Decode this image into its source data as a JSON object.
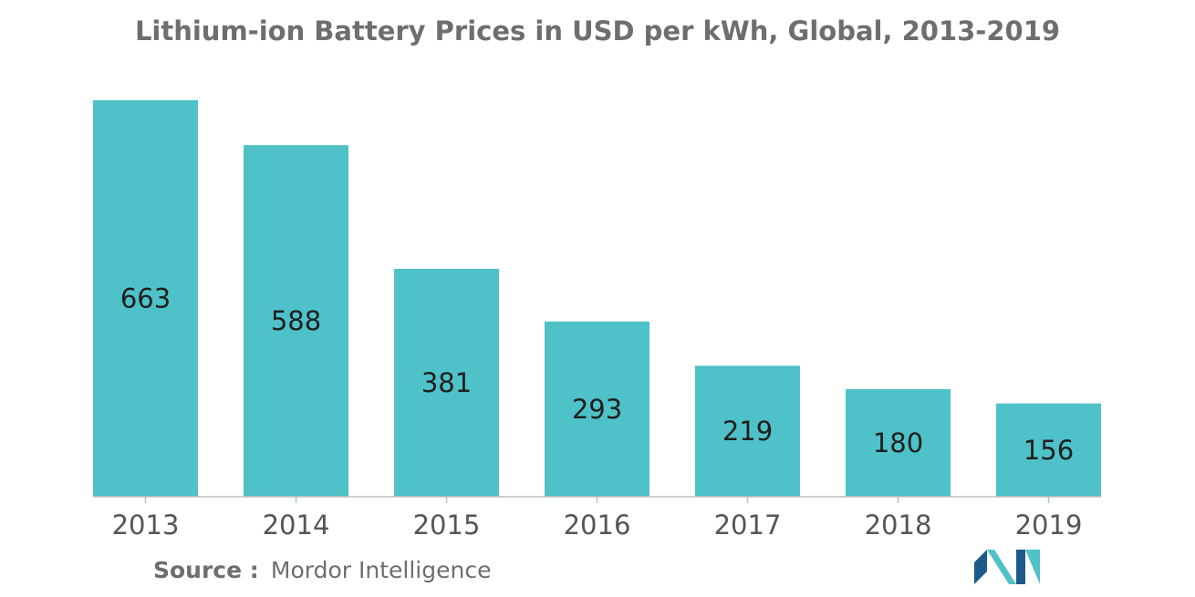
{
  "colors": {
    "bar": "#4fc1c8",
    "axis": "#bfbfbf",
    "logo_dark": "#1d5a8a",
    "logo_light": "#4fc1c8"
  },
  "source": {
    "label": "Source :",
    "value": "Mordor Intelligence"
  },
  "logo": {
    "icon": "mordor-intelligence-logo-icon"
  },
  "chart_data": {
    "type": "bar",
    "title": "Lithium-ion Battery Prices in USD per kWh, Global, 2013-2019",
    "xlabel": "",
    "ylabel": "",
    "categories": [
      "2013",
      "2014",
      "2015",
      "2016",
      "2017",
      "2018",
      "2019"
    ],
    "values": [
      663,
      588,
      381,
      293,
      219,
      180,
      156
    ],
    "ylim": [
      0,
      663
    ],
    "grid": false,
    "legend": "none"
  }
}
